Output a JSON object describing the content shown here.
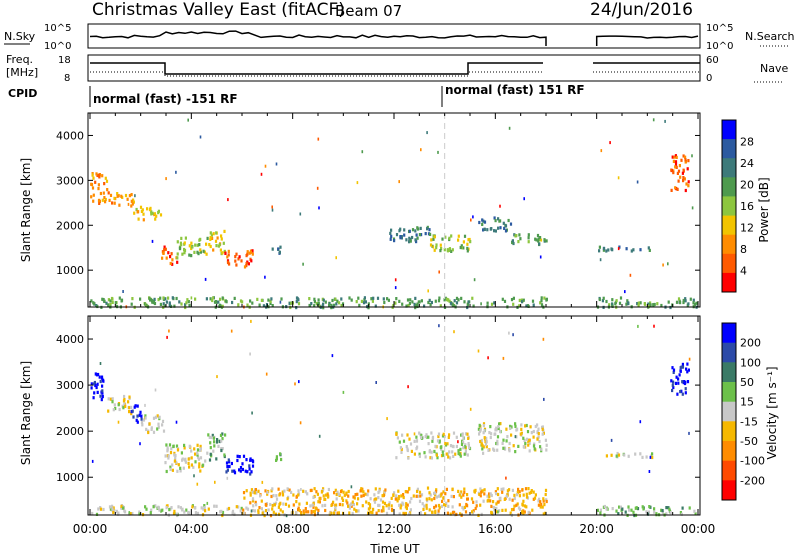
{
  "header": {
    "title": "Christmas Valley East (fitACF)",
    "beam": "Beam 07",
    "date": "24/Jun/2016"
  },
  "noise_panel": {
    "left_label": "N.Sky",
    "right_label": "N.Search",
    "left_ticks": [
      "10^5",
      "10^0"
    ],
    "right_ticks": [
      "10^5",
      "10^0"
    ]
  },
  "freq_panel": {
    "left_label_1": "Freq.",
    "left_label_2": "[MHz]",
    "right_label": "Nave",
    "left_ticks": [
      "18",
      "8"
    ],
    "right_ticks": [
      "60",
      "0"
    ]
  },
  "cpid": {
    "label": "CPID",
    "segments": [
      {
        "text": "normal (fast) -151 RF",
        "start_hour": 0,
        "end_hour": 14
      },
      {
        "text": "normal (fast) 151 RF",
        "start_hour": 14,
        "end_hour": 24
      }
    ]
  },
  "colors": {
    "power": [
      "#0000ff",
      "#2c5aa0",
      "#3d7a7a",
      "#4e9a4e",
      "#8dc63f",
      "#f2c400",
      "#ff8c00",
      "#ff5a00",
      "#ff0000"
    ],
    "velocity": [
      "#0000ff",
      "#2c4aa8",
      "#3a7a66",
      "#6cc04a",
      "#c8c8c8",
      "#f5b800",
      "#ff8c00",
      "#ff4a00",
      "#ff0000"
    ]
  },
  "chart_data": [
    {
      "type": "heatmap",
      "name": "power",
      "ylabel": "Slant Range [km]",
      "colorbar_label": "Power [dB]",
      "colorbar_ticks": [
        "28",
        "24",
        "20",
        "16",
        "12",
        "8",
        "4"
      ],
      "y_ticks": [
        "1000",
        "2000",
        "3000",
        "4000"
      ],
      "ylim": [
        180,
        4500
      ],
      "xlim": [
        0,
        24
      ],
      "segments": [
        {
          "t": [
            0.0,
            0.7
          ],
          "r": [
            2500,
            3200
          ],
          "level": 6
        },
        {
          "t": [
            0.7,
            1.7
          ],
          "r": [
            2450,
            2750
          ],
          "level": 6
        },
        {
          "t": [
            1.7,
            2.8
          ],
          "r": [
            2150,
            2450
          ],
          "level": 5
        },
        {
          "t": [
            2.8,
            3.4
          ],
          "r": [
            1150,
            1550
          ],
          "level": 7
        },
        {
          "t": [
            3.4,
            4.6
          ],
          "r": [
            1300,
            1750
          ],
          "level": 4
        },
        {
          "t": [
            4.6,
            5.3
          ],
          "r": [
            1400,
            1900
          ],
          "level": 5
        },
        {
          "t": [
            5.3,
            6.4
          ],
          "r": [
            1100,
            1500
          ],
          "level": 7
        },
        {
          "t": [
            7.1,
            7.6
          ],
          "r": [
            1400,
            1550
          ],
          "level": 2
        },
        {
          "t": [
            11.8,
            13.4
          ],
          "r": [
            1650,
            2000
          ],
          "level": 2
        },
        {
          "t": [
            13.4,
            15.0
          ],
          "r": [
            1450,
            1800
          ],
          "level": 4
        },
        {
          "t": [
            15.3,
            16.6
          ],
          "r": [
            1900,
            2200
          ],
          "level": 2
        },
        {
          "t": [
            16.6,
            18.0
          ],
          "r": [
            1600,
            1850
          ],
          "level": 3
        },
        {
          "t": [
            20.0,
            22.2
          ],
          "r": [
            1450,
            1550
          ],
          "level": 2
        },
        {
          "t": [
            22.9,
            23.6
          ],
          "r": [
            2800,
            3600
          ],
          "level": 7
        },
        {
          "t": [
            0.0,
            18.0
          ],
          "r": [
            200,
            420
          ],
          "level": 3
        },
        {
          "t": [
            20.0,
            24.0
          ],
          "r": [
            200,
            420
          ],
          "level": 3
        }
      ]
    },
    {
      "type": "heatmap",
      "name": "velocity",
      "ylabel": "Slant Range [km]",
      "colorbar_label": "Velocity [m s⁻¹]",
      "colorbar_ticks": [
        "200",
        "100",
        "50",
        "15",
        "-15",
        "-50",
        "-100",
        "-200"
      ],
      "y_ticks": [
        "1000",
        "2000",
        "3000",
        "4000"
      ],
      "ylim": [
        180,
        4500
      ],
      "xlim": [
        0,
        24
      ],
      "x_ticks": [
        "00:00",
        "04:00",
        "08:00",
        "12:00",
        "16:00",
        "20:00",
        "00:00"
      ],
      "xlabel": "Time UT",
      "segments": [
        {
          "t": [
            0.0,
            0.6
          ],
          "r": [
            2700,
            3300
          ],
          "level": 0
        },
        {
          "t": [
            0.6,
            1.6
          ],
          "r": [
            2400,
            2800
          ],
          "level": 4
        },
        {
          "t": [
            1.6,
            2.0
          ],
          "r": [
            2150,
            2600
          ],
          "level": 0
        },
        {
          "t": [
            2.0,
            2.9
          ],
          "r": [
            2000,
            2400
          ],
          "level": 4
        },
        {
          "t": [
            2.9,
            4.6
          ],
          "r": [
            1150,
            1750
          ],
          "level": 4
        },
        {
          "t": [
            4.6,
            5.3
          ],
          "r": [
            1400,
            2000
          ],
          "level": 3
        },
        {
          "t": [
            5.3,
            6.4
          ],
          "r": [
            1100,
            1500
          ],
          "level": 0
        },
        {
          "t": [
            7.1,
            7.6
          ],
          "r": [
            1400,
            1550
          ],
          "level": 3
        },
        {
          "t": [
            12.0,
            15.0
          ],
          "r": [
            1450,
            2000
          ],
          "level": 4
        },
        {
          "t": [
            15.3,
            18.0
          ],
          "r": [
            1550,
            2200
          ],
          "level": 4
        },
        {
          "t": [
            20.0,
            22.2
          ],
          "r": [
            1450,
            1550
          ],
          "level": 4
        },
        {
          "t": [
            22.9,
            23.6
          ],
          "r": [
            2800,
            3500
          ],
          "level": 0
        },
        {
          "t": [
            0.0,
            6.0
          ],
          "r": [
            200,
            420
          ],
          "level": 4
        },
        {
          "t": [
            6.0,
            18.0
          ],
          "r": [
            200,
            800
          ],
          "level": 5
        },
        {
          "t": [
            20.0,
            24.0
          ],
          "r": [
            200,
            400
          ],
          "level": 3
        }
      ]
    }
  ]
}
